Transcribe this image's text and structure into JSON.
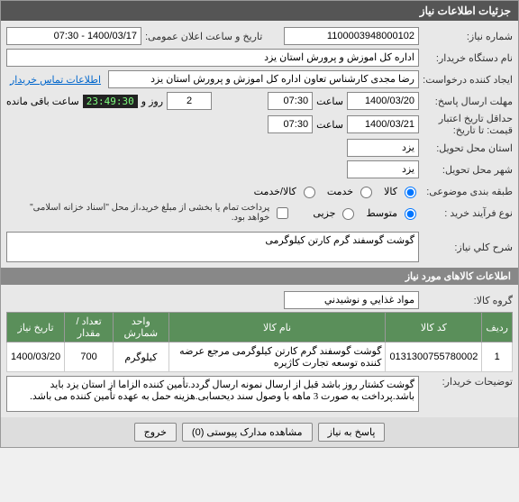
{
  "colors": {
    "header_bg": "#555555",
    "sub_bg": "#888888",
    "th_bg": "#5a8f5a",
    "counter_bg": "#222222",
    "counter_fg": "#7fff7f"
  },
  "section_titles": {
    "main": "جزئیات اطلاعات نیاز",
    "items": "اطلاعات کالاهای مورد نیاز"
  },
  "labels": {
    "need_no": "شماره نیاز:",
    "announce": "تاریخ و ساعت اعلان عمومی:",
    "buyer_org": "نام دستگاه خریدار:",
    "requester": "ایجاد کننده درخواست:",
    "contact_link": "اطلاعات تماس خریدار",
    "reply_deadline": "مهلت ارسال پاسخ:",
    "hour": "ساعت",
    "price_validity": "حداقل تاریخ اعتبار قیمت: تا تاریخ:",
    "delivery_province": "استان محل تحویل:",
    "delivery_city": "شهر محل تحویل:",
    "category": "طبقه بندی موضوعی:",
    "process_type": "نوع فرآیند خرید :",
    "remaining_prefix": "",
    "remaining_day": "روز و",
    "remaining_suffix": "ساعت باقی مانده",
    "payment_note": "پرداخت تمام یا بخشی از مبلغ خرید،از محل \"اسناد خزانه اسلامی\" خواهد بود.",
    "need_title": "شرح کلي نیاز:",
    "item_group": "گروه کالا:",
    "buyer_notes": "توضیحات خریدار:"
  },
  "values": {
    "need_no": "1100003948000102",
    "announce": "1400/03/17 - 07:30",
    "buyer_org": "اداره کل اموزش و پرورش استان یزد",
    "requester": "رضا مجدی کارشناس تعاون اداره کل اموزش و پرورش استان یزد",
    "reply_date": "1400/03/20",
    "reply_time": "07:30",
    "remaining_days": "2",
    "remaining_time": "23:49:30",
    "validity_date": "1400/03/21",
    "validity_time": "07:30",
    "province": "یزد",
    "city": "یزد",
    "need_title": "گوشت گوسفند گرم کارتن کیلوگرمی",
    "item_group": "مواد غذایي و نوشیدني",
    "buyer_notes": "گوشت کشتار روز باشد قبل از ارسال نمونه ارسال گردد.تأمین کننده الزاما از استان یزد باید باشد.پرداخت به صورت 3 ماهه با وصول سند دیحسابی.هزینه حمل به عهده تأمین کننده می باشد."
  },
  "radios": {
    "category": {
      "options": [
        "کالا",
        "خدمت",
        "کالا/خدمت"
      ],
      "selected": 0
    },
    "process": {
      "options": [
        "متوسط",
        "جزیی"
      ],
      "selected": 0
    }
  },
  "checkbox": {
    "treasury_doc": false
  },
  "table": {
    "headers": [
      "ردیف",
      "کد کالا",
      "نام کالا",
      "واحد شمارش",
      "تعداد / مقدار",
      "تاریخ نیاز"
    ],
    "rows": [
      {
        "idx": "1",
        "code": "0131300755780002",
        "name": "گوشت گوسفند گرم کارتن کیلوگرمی مرجع عرضه کننده توسعه تجارت کاژیره",
        "unit": "کیلوگرم",
        "qty": "700",
        "date": "1400/03/20"
      }
    ]
  },
  "buttons": {
    "reply": "پاسخ به نیاز",
    "attachments": "مشاهده مدارک پیوستی (0)",
    "close": "خروج"
  }
}
